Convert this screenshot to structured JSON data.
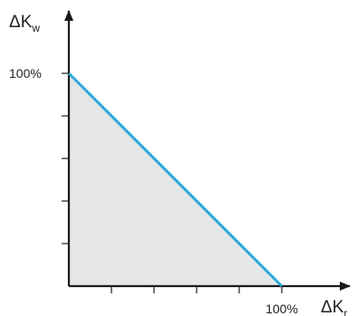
{
  "chart_data": {
    "type": "area",
    "x_axis": {
      "main": "ΔK",
      "sub": "r"
    },
    "y_axis": {
      "main": "ΔK",
      "sub": "w"
    },
    "xlim": [
      0,
      100
    ],
    "ylim": [
      0,
      100
    ],
    "x_unit": "%",
    "y_unit": "%",
    "x_ticks": [
      20,
      40,
      60,
      80,
      100
    ],
    "y_ticks": [
      20,
      40,
      60,
      80,
      100
    ],
    "x_tick_labels": [
      {
        "value": 100,
        "label": "100%"
      }
    ],
    "y_tick_labels": [
      {
        "value": 100,
        "label": "100%"
      }
    ],
    "series": [
      {
        "points": [
          [
            0,
            100
          ],
          [
            100,
            0
          ]
        ]
      }
    ],
    "colors": {
      "line": "#2aa7df",
      "fill": "#e5e6e8",
      "axis": "#1a1a1a"
    },
    "grid": false
  }
}
